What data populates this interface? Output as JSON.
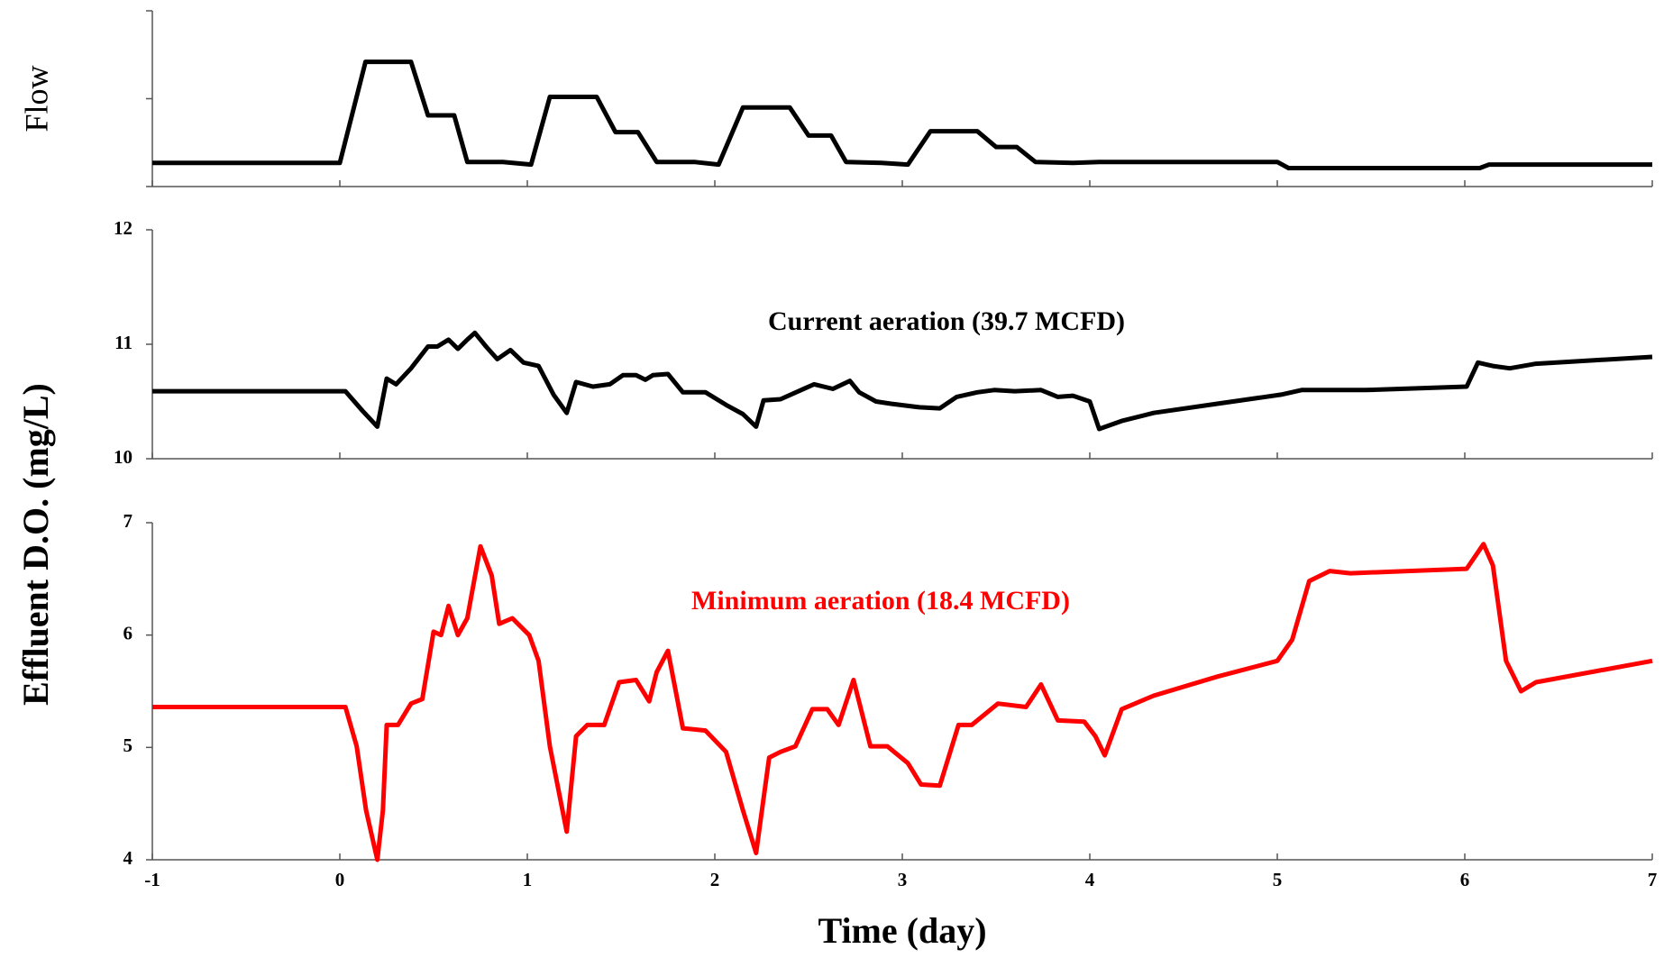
{
  "chart_data": [
    {
      "type": "line",
      "ylabel": "Flow",
      "color": "#000000",
      "xlim": [
        -1,
        7
      ],
      "xticks": [
        -1,
        0,
        1,
        2,
        3,
        4,
        5,
        6,
        7
      ],
      "xtick_labels": false,
      "ylim": [
        0,
        2
      ],
      "yticks": [
        0,
        1,
        2
      ],
      "ytick_labels": false,
      "x": [
        -1,
        0,
        0.137,
        0.38,
        0.47,
        0.61,
        0.68,
        0.87,
        1.02,
        1.12,
        1.37,
        1.47,
        1.59,
        1.69,
        1.89,
        2.02,
        2.15,
        2.4,
        2.5,
        2.62,
        2.7,
        2.89,
        3.03,
        3.15,
        3.4,
        3.5,
        3.61,
        3.71,
        3.91,
        4.05,
        5.0,
        5.06,
        6.08,
        6.13,
        7
      ],
      "values": [
        0.27,
        0.27,
        1.42,
        1.42,
        0.81,
        0.81,
        0.28,
        0.28,
        0.25,
        1.02,
        1.02,
        0.62,
        0.62,
        0.28,
        0.28,
        0.25,
        0.9,
        0.9,
        0.58,
        0.58,
        0.28,
        0.27,
        0.25,
        0.63,
        0.63,
        0.45,
        0.45,
        0.28,
        0.27,
        0.28,
        0.28,
        0.21,
        0.21,
        0.25,
        0.25
      ]
    },
    {
      "type": "line",
      "annotation": "Current aeration (39.7 MCFD)",
      "color": "#000000",
      "xlim": [
        -1,
        7
      ],
      "xticks": [
        -1,
        0,
        1,
        2,
        3,
        4,
        5,
        6,
        7
      ],
      "xtick_labels": false,
      "ylim": [
        10,
        12
      ],
      "yticks": [
        10,
        11,
        12
      ],
      "ytick_labels": true,
      "x": [
        -1,
        0.03,
        0.12,
        0.2,
        0.25,
        0.3,
        0.38,
        0.47,
        0.52,
        0.58,
        0.63,
        0.68,
        0.72,
        0.78,
        0.84,
        0.91,
        0.98,
        1.06,
        1.14,
        1.21,
        1.26,
        1.35,
        1.44,
        1.51,
        1.58,
        1.63,
        1.67,
        1.75,
        1.83,
        1.95,
        2.06,
        2.15,
        2.22,
        2.26,
        2.35,
        2.46,
        2.53,
        2.63,
        2.72,
        2.77,
        2.86,
        2.94,
        3.09,
        3.2,
        3.29,
        3.4,
        3.49,
        3.6,
        3.74,
        3.83,
        3.91,
        4.0,
        4.05,
        4.17,
        4.34,
        4.68,
        5.02,
        5.13,
        5.47,
        6.01,
        6.07,
        6.15,
        6.24,
        6.38,
        7.0
      ],
      "values": [
        10.59,
        10.59,
        10.42,
        10.28,
        10.7,
        10.65,
        10.79,
        10.98,
        10.98,
        11.04,
        10.96,
        11.04,
        11.1,
        10.98,
        10.87,
        10.95,
        10.84,
        10.81,
        10.56,
        10.4,
        10.67,
        10.63,
        10.65,
        10.73,
        10.73,
        10.69,
        10.73,
        10.74,
        10.58,
        10.58,
        10.47,
        10.39,
        10.28,
        10.51,
        10.52,
        10.6,
        10.65,
        10.61,
        10.68,
        10.58,
        10.5,
        10.48,
        10.45,
        10.44,
        10.54,
        10.58,
        10.6,
        10.59,
        10.6,
        10.54,
        10.55,
        10.5,
        10.26,
        10.33,
        10.4,
        10.48,
        10.56,
        10.6,
        10.6,
        10.63,
        10.84,
        10.81,
        10.79,
        10.83,
        10.89
      ]
    },
    {
      "type": "line",
      "annotation": "Minimum aeration (18.4 MCFD)",
      "color": "#ff0000",
      "xlabel": "Time (day)",
      "xlim": [
        -1,
        7
      ],
      "xticks": [
        -1,
        0,
        1,
        2,
        3,
        4,
        5,
        6,
        7
      ],
      "xtick_labels": true,
      "ylim": [
        4,
        7
      ],
      "yticks": [
        4,
        5,
        6,
        7
      ],
      "ytick_labels": true,
      "x": [
        -1,
        0.03,
        0.09,
        0.14,
        0.2,
        0.23,
        0.25,
        0.31,
        0.38,
        0.44,
        0.5,
        0.54,
        0.58,
        0.63,
        0.68,
        0.75,
        0.81,
        0.85,
        0.92,
        1.01,
        1.06,
        1.12,
        1.21,
        1.26,
        1.32,
        1.41,
        1.49,
        1.58,
        1.65,
        1.69,
        1.75,
        1.83,
        1.95,
        2.06,
        2.15,
        2.22,
        2.29,
        2.35,
        2.43,
        2.52,
        2.6,
        2.66,
        2.74,
        2.83,
        2.92,
        3.03,
        3.1,
        3.2,
        3.3,
        3.37,
        3.51,
        3.66,
        3.74,
        3.83,
        3.97,
        4.03,
        4.08,
        4.17,
        4.34,
        4.68,
        5.0,
        5.08,
        5.17,
        5.28,
        5.39,
        6.01,
        6.1,
        6.15,
        6.22,
        6.3,
        6.38,
        7.0
      ],
      "values": [
        5.36,
        5.36,
        5.01,
        4.44,
        4.0,
        4.44,
        5.2,
        5.2,
        5.39,
        5.43,
        6.03,
        6.0,
        6.26,
        6.0,
        6.15,
        6.79,
        6.53,
        6.1,
        6.15,
        6.0,
        5.77,
        5.01,
        4.25,
        5.1,
        5.2,
        5.2,
        5.58,
        5.6,
        5.41,
        5.67,
        5.86,
        5.17,
        5.15,
        4.96,
        4.44,
        4.06,
        4.91,
        4.96,
        5.01,
        5.34,
        5.34,
        5.2,
        5.6,
        5.01,
        5.01,
        4.86,
        4.67,
        4.66,
        5.2,
        5.2,
        5.39,
        5.36,
        5.56,
        5.24,
        5.23,
        5.1,
        4.93,
        5.34,
        5.46,
        5.63,
        5.77,
        5.96,
        6.48,
        6.57,
        6.55,
        6.59,
        6.81,
        6.62,
        5.77,
        5.5,
        5.58,
        5.77
      ]
    }
  ],
  "shared_ylabel": "Effluent D.O. (mg/L)"
}
